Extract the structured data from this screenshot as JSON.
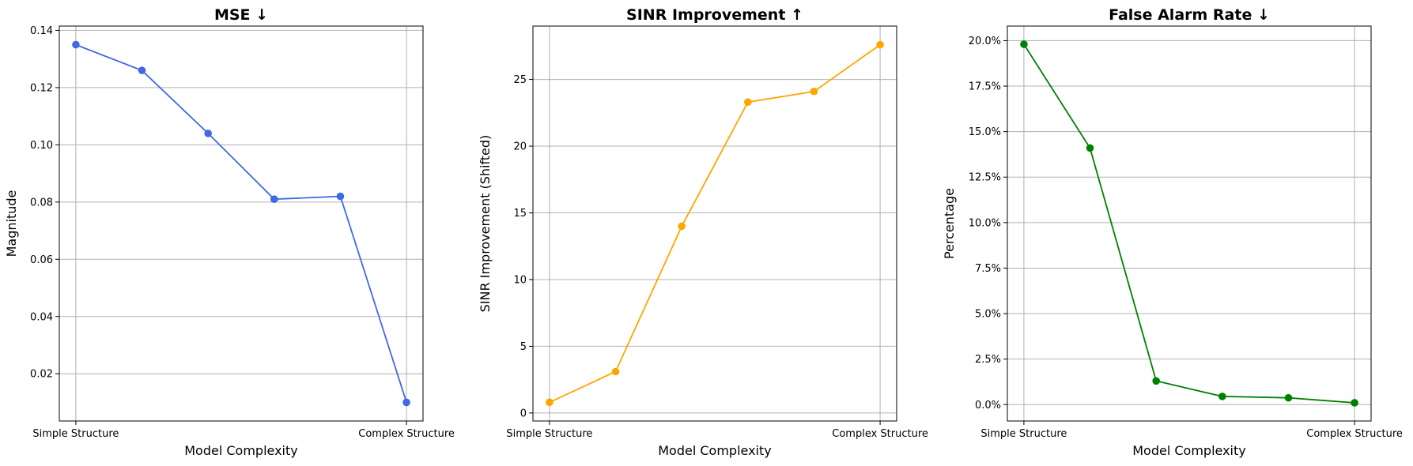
{
  "chart_data": [
    {
      "type": "line",
      "title": "MSE ↓",
      "xlabel": "Model Complexity",
      "ylabel": "Magnitude",
      "x": [
        0,
        1,
        2,
        3,
        4,
        5
      ],
      "xtick_labels": [
        "Simple Structure",
        "Complex Structure"
      ],
      "xtick_positions": [
        0,
        5
      ],
      "values": [
        0.135,
        0.126,
        0.104,
        0.081,
        0.082,
        0.01
      ],
      "ylim": [
        0.0035,
        0.1415
      ],
      "yticks": [
        0.02,
        0.04,
        0.06,
        0.08,
        0.1,
        0.12,
        0.14
      ],
      "ytick_labels": [
        "0.02",
        "0.04",
        "0.06",
        "0.08",
        "0.10",
        "0.12",
        "0.14"
      ],
      "color": "#4169e1",
      "grid": true
    },
    {
      "type": "line",
      "title": "SINR Improvement ↑",
      "xlabel": "Model Complexity",
      "ylabel": "SINR Improvement (Shifted)",
      "x": [
        0,
        1,
        2,
        3,
        4,
        5
      ],
      "xtick_labels": [
        "Simple Structure",
        "Complex Structure"
      ],
      "xtick_positions": [
        0,
        5
      ],
      "values": [
        0.8,
        3.1,
        14.0,
        23.3,
        24.1,
        27.6
      ],
      "ylim": [
        -0.6,
        29.0
      ],
      "yticks": [
        0,
        5,
        10,
        15,
        20,
        25
      ],
      "ytick_labels": [
        "0",
        "5",
        "10",
        "15",
        "20",
        "25"
      ],
      "color": "#ffa500",
      "grid": true
    },
    {
      "type": "line",
      "title": "False Alarm Rate ↓",
      "xlabel": "Model Complexity",
      "ylabel": "Percentage",
      "x": [
        0,
        1,
        2,
        3,
        4,
        5
      ],
      "xtick_labels": [
        "Simple Structure",
        "Complex Structure"
      ],
      "xtick_positions": [
        0,
        5
      ],
      "values": [
        19.8,
        14.1,
        1.3,
        0.45,
        0.37,
        0.1
      ],
      "ylim": [
        -0.9,
        20.8
      ],
      "yticks": [
        0,
        2.5,
        5,
        7.5,
        10,
        12.5,
        15,
        17.5,
        20
      ],
      "ytick_labels": [
        "0.0%",
        "2.5%",
        "5.0%",
        "7.5%",
        "10.0%",
        "12.5%",
        "15.0%",
        "17.5%",
        "20.0%"
      ],
      "color": "#008000",
      "grid": true
    }
  ]
}
